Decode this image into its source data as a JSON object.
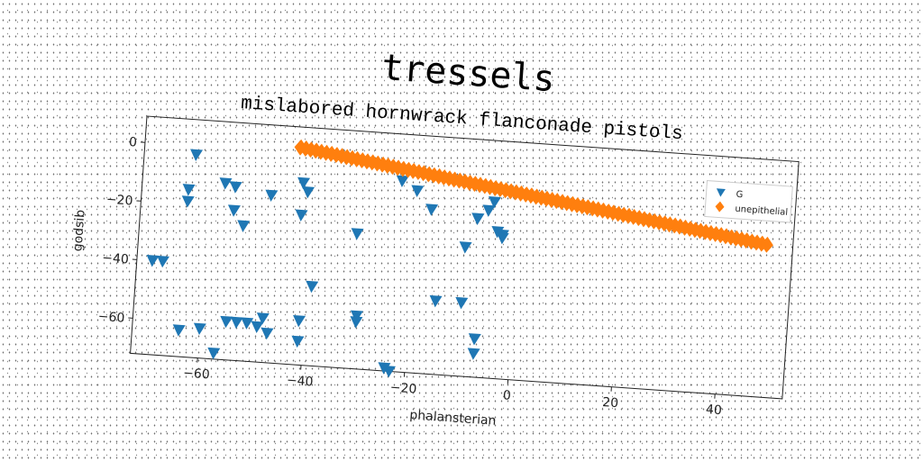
{
  "chart_data": {
    "type": "scatter",
    "title": "tressels",
    "subtitle": "mislabored hornwrack flanconade pistols",
    "xlabel": "phalansterian",
    "ylabel": "godsib",
    "xlim": [
      -73,
      53
    ],
    "ylim": [
      -72,
      9
    ],
    "xticks": [
      -60,
      -40,
      -20,
      0,
      20,
      40
    ],
    "yticks": [
      0,
      -20,
      -40,
      -60
    ],
    "xtick_labels": [
      "−60",
      "−40",
      "−20",
      "0",
      "20",
      "40"
    ],
    "ytick_labels": [
      "0",
      "−20",
      "−40",
      "−60"
    ],
    "legend": {
      "placement": "top-right",
      "entries": [
        "G",
        "unepithelial"
      ]
    },
    "series": [
      {
        "name": "G",
        "marker": "triangle-down",
        "color": "#1f77b4",
        "x": [
          -63,
          -64,
          -64,
          -57,
          -55,
          -55,
          -53,
          -48,
          -42,
          -42,
          -41,
          -23,
          -20,
          -17,
          -10,
          -8,
          -8,
          -6,
          -5,
          -4,
          -3,
          -3,
          -70,
          -68,
          -39,
          -31,
          -30,
          -30,
          -15,
          -10,
          -60,
          -55,
          -53,
          -51,
          -49,
          -48,
          -47,
          -41,
          -41,
          -23,
          -24,
          -7,
          -7,
          -64,
          -57
        ],
        "y": [
          -3,
          -15,
          -19,
          -12,
          -13,
          -21,
          -26,
          -15,
          -21,
          -10,
          -13,
          -7,
          -10,
          -16,
          -28,
          -18,
          -18,
          -15,
          -12,
          -22,
          -23,
          -24,
          -40,
          -40,
          -45,
          -26,
          -54,
          -56,
          -47,
          -47,
          -62,
          -59,
          -59,
          -59,
          -60,
          -57,
          -62,
          -57,
          -64,
          -72,
          -71,
          -59,
          -64,
          -63,
          -70
        ]
      },
      {
        "name": "unepithelial",
        "marker": "diamond",
        "color": "#ff7f0e",
        "x_range": [
          -43,
          48
        ],
        "x_step": 1,
        "y_start": 2,
        "y_end": -20
      }
    ]
  }
}
